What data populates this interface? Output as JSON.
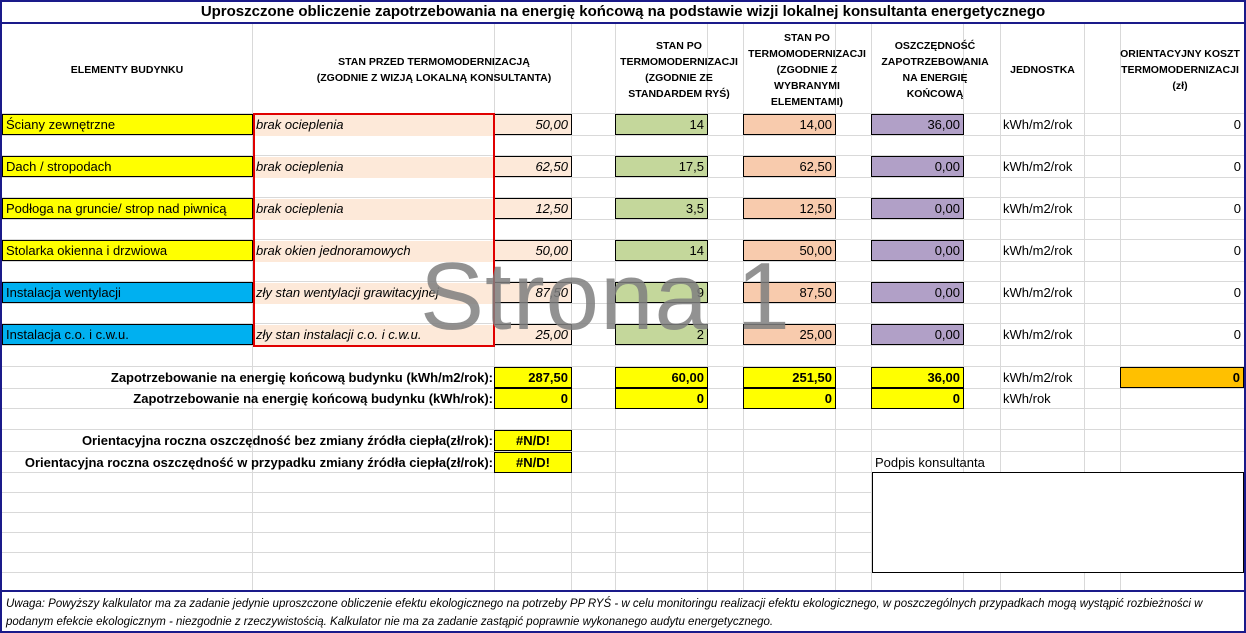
{
  "title": "Uproszczone obliczenie zapotrzebowania na energię końcową na podstawie wizji lokalnej konsultanta energetycznego",
  "headers": {
    "elements": "ELEMENTY BUDYNKU",
    "before": "STAN PRZED TERMOMODERNIZACJĄ\n(ZGODNIE Z WIZJĄ LOKALNĄ KONSULTANTA)",
    "after_std": "STAN PO\nTERMOMODERNIZACJI\n(ZGODNIE ZE\nSTANDARDEM RYŚ)",
    "after_sel": "STAN PO\nTERMOMODERNIZACJI\n(ZGODNIE Z\nWYBRANYMI\nELEMENTAMI)",
    "savings": "OSZCZĘDNOŚĆ\nZAPOTRZEBOWANIA\nNA ENERGIĘ\nKOŃCOWĄ",
    "unit": "JEDNOSTKA",
    "cost": "ORIENTACYJNY KOSZT\nTERMOMODERNIZACJI\n(zł)"
  },
  "rows": [
    {
      "element": "Ściany zewnętrzne",
      "state": "brak ocieplenia",
      "before": "50,00",
      "std": "14",
      "selected": "14,00",
      "savings": "36,00",
      "unit": "kWh/m2/rok",
      "cost": "0",
      "category": "building"
    },
    {
      "element": "Dach / stropodach",
      "state": "brak ocieplenia",
      "before": "62,50",
      "std": "17,5",
      "selected": "62,50",
      "savings": "0,00",
      "unit": "kWh/m2/rok",
      "cost": "0",
      "category": "building"
    },
    {
      "element": "Podłoga na gruncie/ strop nad piwnicą",
      "state": "brak ocieplenia",
      "before": "12,50",
      "std": "3,5",
      "selected": "12,50",
      "savings": "0,00",
      "unit": "kWh/m2/rok",
      "cost": "0",
      "category": "building"
    },
    {
      "element": "Stolarka okienna i drzwiowa",
      "state": "brak okien jednoramowych",
      "before": "50,00",
      "std": "14",
      "selected": "50,00",
      "savings": "0,00",
      "unit": "kWh/m2/rok",
      "cost": "0",
      "category": "building"
    },
    {
      "element": "Instalacja wentylacji",
      "state": "zły stan wentylacji grawitacyjnej",
      "before": "87,50",
      "std": "9",
      "selected": "87,50",
      "savings": "0,00",
      "unit": "kWh/m2/rok",
      "cost": "0",
      "category": "installation"
    },
    {
      "element": "Instalacja c.o. i c.w.u.",
      "state": "zły stan instalacji c.o. i c.w.u.",
      "before": "25,00",
      "std": "2",
      "selected": "25,00",
      "savings": "0,00",
      "unit": "kWh/m2/rok",
      "cost": "0",
      "category": "installation"
    }
  ],
  "totals": [
    {
      "label": "Zapotrzebowanie na energię końcową budynku (kWh/m2/rok):",
      "before": "287,50",
      "std": "60,00",
      "selected": "251,50",
      "savings": "36,00",
      "unit": "kWh/m2/rok",
      "cost": "0"
    },
    {
      "label": "Zapotrzebowanie na energię końcową budynku (kWh/rok):",
      "before": "0",
      "std": "0",
      "selected": "0",
      "savings": "0",
      "unit": "kWh/rok"
    }
  ],
  "annual": [
    {
      "label": "Orientacyjna roczna oszczędność bez zmiany źródła ciepła(zł/rok):",
      "value": "#N/D!"
    },
    {
      "label": "Orientacyjna roczna oszczędność w przypadku zmiany źródła ciepła(zł/rok):",
      "value": "#N/D!"
    }
  ],
  "signature_label": "Podpis konsultanta",
  "watermark": "Strona 1",
  "footer": "Uwaga: Powyższy kalkulator ma za zadanie jedynie uproszczone obliczenie efektu ekologicznego na potrzeby PP RYŚ - w celu monitoringu realizacji efektu ekologicznego, w poszczególnych przypadkach mogą wystąpić rozbieżności w podanym efekcie ekologicznym - niezgodnie z rzeczywistością. Kalkulator nie ma za zadanie zastąpić poprawnie wykonanego audytu energetycznego.",
  "colors": {
    "building": "#ffff00",
    "installation": "#00b0f0",
    "state": "#fde9d9",
    "standard": "#c4d79b",
    "selected": "#f8cbad",
    "savings": "#b1a0c7",
    "totals": "#ffff00",
    "cost_total": "#ffc000",
    "highlight_box": "#e00000"
  }
}
